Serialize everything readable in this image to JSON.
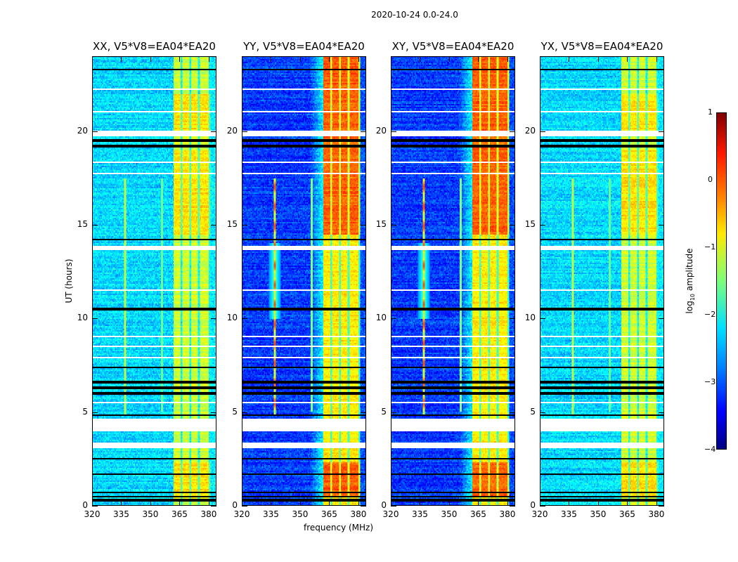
{
  "suptitle": "2020-10-24 0.0-24.0",
  "chart_data": {
    "type": "heatmap",
    "title": "2020-10-24 0.0-24.0",
    "xlabel": "frequency (MHz)",
    "ylabel": "UT (hours)",
    "xlim": [
      320,
      384
    ],
    "ylim": [
      0,
      24
    ],
    "xticks": [
      "320",
      "335",
      "350",
      "365",
      "380"
    ],
    "yticks": [
      "0",
      "5",
      "10",
      "15",
      "20"
    ],
    "panels": [
      {
        "title": "XX, V5*V8=EA04*EA20",
        "background_log10": -2.3,
        "band_MHz": [
          362,
          381
        ],
        "band_log10": -1.0
      },
      {
        "title": "YY, V5*V8=EA04*EA20",
        "background_log10": -3.1,
        "band_MHz": [
          362,
          381
        ],
        "band_log10": -0.5
      },
      {
        "title": "XY, V5*V8=EA04*EA20",
        "background_log10": -3.1,
        "band_MHz": [
          362,
          381
        ],
        "band_log10": -0.5
      },
      {
        "title": "YX, V5*V8=EA04*EA20",
        "background_log10": -2.3,
        "band_MHz": [
          362,
          381
        ],
        "band_log10": -1.0
      }
    ],
    "rfi_line_MHz": 337,
    "rfi_line_hours": [
      4.9,
      17.5
    ],
    "flagged_hours": [
      [
        3.05,
        3.4
      ],
      [
        4.0,
        4.65
      ],
      [
        19.7,
        20.0
      ]
    ],
    "colorbar": {
      "label": "log10 amplitude",
      "label_main": "log",
      "label_sub": "10",
      "label_rest": " amplitude",
      "range": [
        -4,
        1
      ],
      "ticks": [
        "1",
        "0",
        "−1",
        "−2",
        "−3",
        "−4"
      ],
      "colormap": "jet"
    }
  }
}
